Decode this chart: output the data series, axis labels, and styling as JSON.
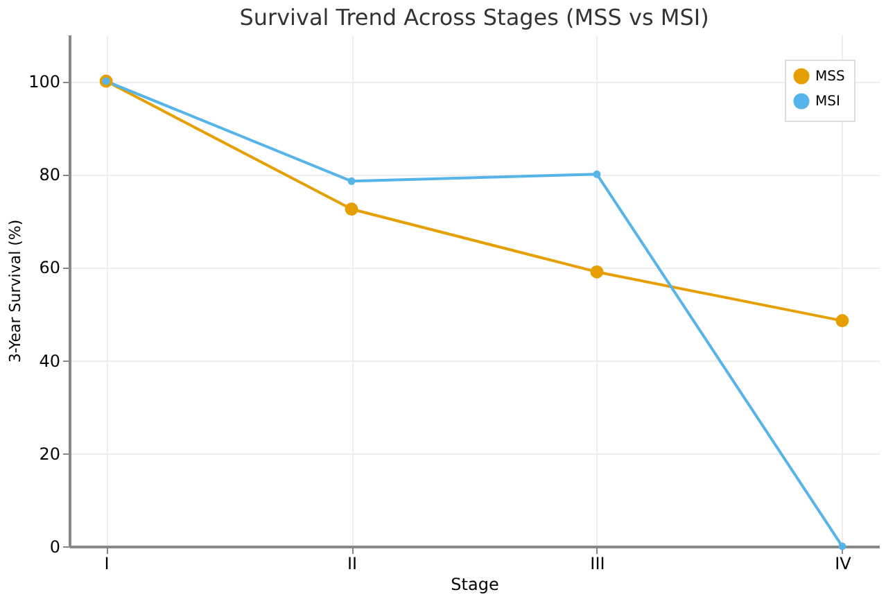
{
  "chart_data": {
    "type": "line",
    "title": "Survival Trend Across Stages (MSS vs MSI)",
    "xlabel": "Stage",
    "ylabel": "3-Year Survival (%)",
    "categories": [
      "I",
      "II",
      "III",
      "IV"
    ],
    "series": [
      {
        "name": "MSS",
        "color": "#e69f00",
        "values": [
          100,
          72.5,
          59,
          48.5
        ]
      },
      {
        "name": "MSI",
        "color": "#56b4e9",
        "values": [
          100,
          78.5,
          80,
          0
        ]
      }
    ],
    "ylim": [
      0,
      110
    ],
    "yticks": [
      0,
      20,
      40,
      60,
      80,
      100
    ],
    "grid": true,
    "legend": "top right",
    "marker": "circle",
    "line_style": "solid"
  }
}
